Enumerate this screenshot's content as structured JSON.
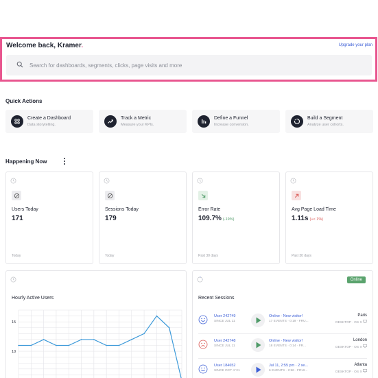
{
  "header": {
    "welcome": "Welcome back, Kramer",
    "welcome_dot": ".",
    "upgrade_link": "Upgrade your plan",
    "search_placeholder": "Search for dashboards, segments, clicks, page visits and more"
  },
  "quick_actions": {
    "title": "Quick Actions",
    "items": [
      {
        "title": "Create a Dashboard",
        "subtitle": "Data storytelling.",
        "icon": "dashboard-icon"
      },
      {
        "title": "Track a Metric",
        "subtitle": "Measure your KPIs.",
        "icon": "trend-icon"
      },
      {
        "title": "Define a Funnel",
        "subtitle": "Increase conversion.",
        "icon": "funnel-icon"
      },
      {
        "title": "Build a Segment",
        "subtitle": "Analyze user cohorts.",
        "icon": "segment-icon"
      }
    ]
  },
  "happening_now": {
    "title": "Happening Now",
    "kpis": [
      {
        "label": "Users Today",
        "value": "171",
        "delta": "",
        "footer": "Today",
        "icon": "no-change-icon"
      },
      {
        "label": "Sessions Today",
        "value": "179",
        "delta": "",
        "footer": "Today",
        "icon": "no-change-icon"
      },
      {
        "label": "Error Rate",
        "value": "109.7%",
        "delta": "(-19%)",
        "delta_color": "#4f9a68",
        "footer": "Past 30 days",
        "icon": "arrow-down-right-icon"
      },
      {
        "label": "Avg Page Load Time",
        "value": "1.11s",
        "delta": "(+< 1%)",
        "delta_color": "#d9534f",
        "footer": "Past 30 days",
        "icon": "arrow-up-right-icon"
      }
    ]
  },
  "hourly": {
    "title": "Hourly Active Users",
    "y_ticks": [
      "15",
      "10"
    ]
  },
  "chart_data": {
    "type": "line",
    "title": "Hourly Active Users",
    "xlabel": "",
    "ylabel": "",
    "y_ticks": [
      10,
      15
    ],
    "ylim": [
      5,
      17
    ],
    "grid": true,
    "series": [
      {
        "values": [
          11,
          11,
          12,
          11,
          11,
          12,
          12,
          11,
          11,
          12,
          13,
          16,
          14,
          5
        ]
      }
    ]
  },
  "recent_sessions": {
    "title": "Recent Sessions",
    "badge": "Online",
    "rows": [
      {
        "user": "User 242749",
        "since": "SINCE JUL 11",
        "status": "Online · New visitor!",
        "events": "17 EVENTS · 0:19 · FRU...",
        "city": "Paris",
        "device": "DESKTOP · OS X",
        "face": "smile"
      },
      {
        "user": "User 242748",
        "since": "SINCE JUL 11",
        "status": "Online · New visitor!",
        "events": "18 EVENTS · 0:14 · FR...",
        "city": "London",
        "device": "DESKTOP · OS X",
        "face": "frown"
      },
      {
        "user": "User 184652",
        "since": "SINCE OCT 4 '21",
        "status": "Jul 11, 2:55 pm · 2 se...",
        "events": "6 EVENTS · 2:56 · FRUI...",
        "city": "Atlanta",
        "device": "DESKTOP · OS X",
        "face": "smile"
      }
    ]
  },
  "colors": {
    "accent": "#e8568f",
    "link": "#3d5fd6",
    "good": "#4f9a68",
    "bad": "#d9534f"
  }
}
